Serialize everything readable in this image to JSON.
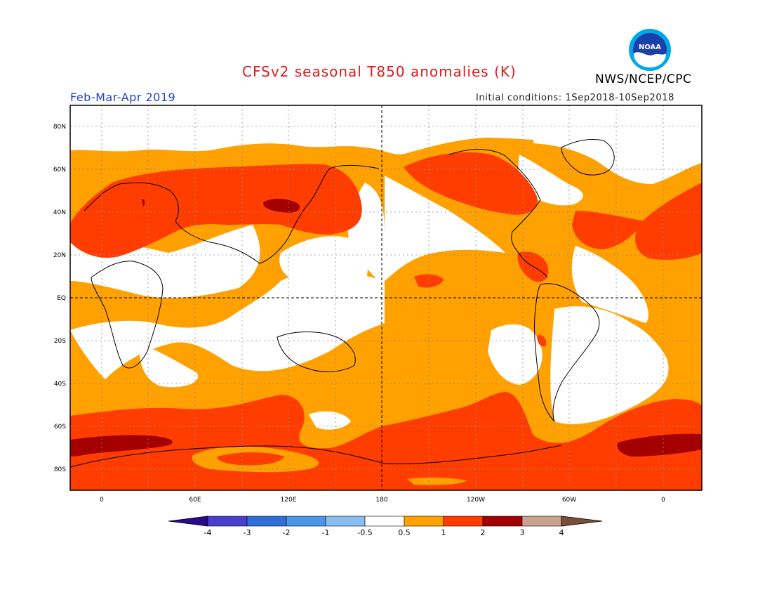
{
  "header": {
    "title": "CFSv2 seasonal T850 anomalies (K)",
    "agency": "NWS/NCEP/CPC",
    "logo_text": "NOAA",
    "period": "Feb-Mar-Apr 2019",
    "initial_conditions": "Initial conditions: 1Sep2018-10Sep2018"
  },
  "map": {
    "lat_labels": [
      "80N",
      "60N",
      "40N",
      "20N",
      "EQ",
      "20S",
      "40S",
      "60S",
      "80S"
    ],
    "lon_labels": [
      "0",
      "60E",
      "120E",
      "180",
      "120W",
      "60W",
      "0"
    ],
    "colors": {
      "below_minus4": "#2a0a8c",
      "minus4_minus3": "#4a3fc9",
      "minus3_minus2": "#2f6fd6",
      "minus2_minus1": "#4a97e8",
      "minus1_minus05": "#86bff2",
      "neutral": "#ffffff",
      "p05_1": "#ffa100",
      "p1_2": "#ff3d00",
      "p2_3": "#a50000",
      "p3_4": "#c8a18f",
      "above_4": "#7a4d3a"
    }
  },
  "colorbar": {
    "labels": [
      "-4",
      "-3",
      "-2",
      "-1",
      "-0.5",
      "0.5",
      "1",
      "2",
      "3",
      "4"
    ],
    "colors": [
      "#4a3fc9",
      "#2f6fd6",
      "#4a97e8",
      "#86bff2",
      "#ffffff",
      "#ffa100",
      "#ff3d00",
      "#a50000",
      "#c8a18f"
    ],
    "low_arrow_color": "#2a0a8c",
    "high_arrow_color": "#7a4d3a"
  }
}
